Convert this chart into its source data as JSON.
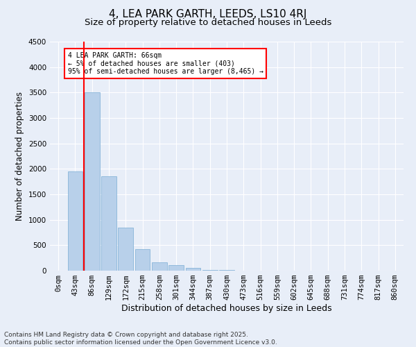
{
  "title": "4, LEA PARK GARTH, LEEDS, LS10 4RJ",
  "subtitle": "Size of property relative to detached houses in Leeds",
  "xlabel": "Distribution of detached houses by size in Leeds",
  "ylabel": "Number of detached properties",
  "bar_color": "#b8d0ea",
  "bar_edge_color": "#7aadd4",
  "categories": [
    "0sqm",
    "43sqm",
    "86sqm",
    "129sqm",
    "172sqm",
    "215sqm",
    "258sqm",
    "301sqm",
    "344sqm",
    "387sqm",
    "430sqm",
    "473sqm",
    "516sqm",
    "559sqm",
    "602sqm",
    "645sqm",
    "688sqm",
    "731sqm",
    "774sqm",
    "817sqm",
    "860sqm"
  ],
  "values": [
    5,
    1950,
    3500,
    1850,
    850,
    425,
    170,
    110,
    60,
    20,
    10,
    5,
    0,
    0,
    0,
    0,
    0,
    0,
    0,
    0,
    0
  ],
  "ylim": [
    0,
    4500
  ],
  "yticks": [
    0,
    500,
    1000,
    1500,
    2000,
    2500,
    3000,
    3500,
    4000,
    4500
  ],
  "red_line_x": 1.5,
  "annotation_text": "4 LEA PARK GARTH: 66sqm\n← 5% of detached houses are smaller (403)\n95% of semi-detached houses are larger (8,465) →",
  "footer_line1": "Contains HM Land Registry data © Crown copyright and database right 2025.",
  "footer_line2": "Contains public sector information licensed under the Open Government Licence v3.0.",
  "background_color": "#e8eef8",
  "grid_color": "#ffffff",
  "title_fontsize": 11,
  "subtitle_fontsize": 9.5,
  "tick_fontsize": 7.5,
  "ylabel_fontsize": 8.5,
  "xlabel_fontsize": 9,
  "footer_fontsize": 6.5
}
